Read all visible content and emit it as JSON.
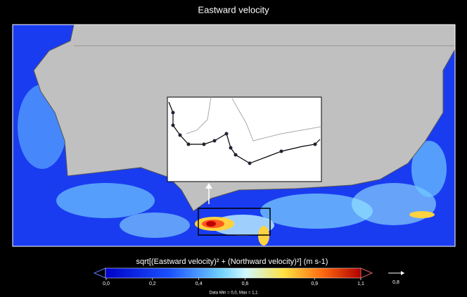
{
  "title": "Eastward velocity",
  "colorbar": {
    "label": "sqrt[(Eastward velocity)² + (Northward velocity)²]  (m s-1)",
    "range": [
      0,
      1.1
    ],
    "ticks": [
      {
        "value": 0,
        "label": "0,0"
      },
      {
        "value": 0.2,
        "label": "0,2"
      },
      {
        "value": 0.4,
        "label": "0,4"
      },
      {
        "value": 0.6,
        "label": "0,6"
      },
      {
        "value": 0.9,
        "label": "0,9"
      },
      {
        "value": 1.1,
        "label": "1,1"
      }
    ]
  },
  "reference_vector": {
    "label": "0,8"
  },
  "footer": "Data Min = 0,0, Max = 1,1"
}
